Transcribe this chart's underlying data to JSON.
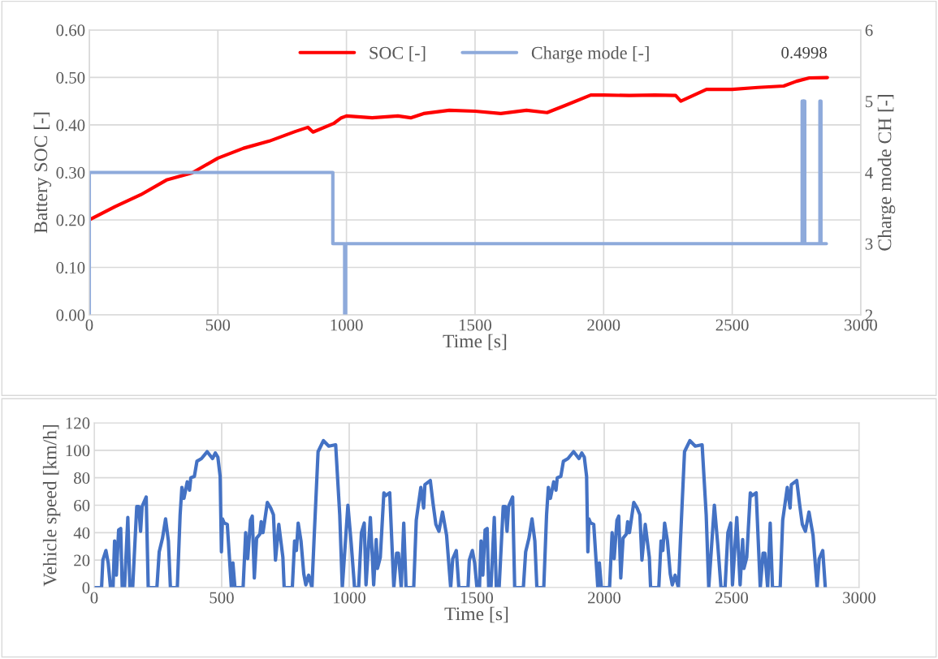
{
  "chart_data": [
    {
      "type": "line",
      "xlabel": "Time [s]",
      "ylabel": "Battery SOC [-]",
      "y2label": "Charge mode CH [-]",
      "xlim": [
        0,
        3000
      ],
      "xticks": [
        0,
        500,
        1000,
        1500,
        2000,
        2500,
        3000
      ],
      "ylim": [
        0,
        0.6
      ],
      "yticks": [
        {
          "value": 0,
          "label": "0.00"
        },
        {
          "value": 0.1,
          "label": "0.10"
        },
        {
          "value": 0.2,
          "label": "0.20"
        },
        {
          "value": 0.3,
          "label": "0.30"
        },
        {
          "value": 0.4,
          "label": "0.40"
        },
        {
          "value": 0.5,
          "label": "0.50"
        },
        {
          "value": 0.6,
          "label": "0.60"
        }
      ],
      "y2lim": [
        2,
        6
      ],
      "y2ticks": [
        2,
        3,
        4,
        5,
        6
      ],
      "grid": true,
      "legend": "top",
      "marker": "none",
      "line_style": "solid",
      "annotations": [
        {
          "text": "0.4998",
          "x": 2870,
          "y": 0.4998
        }
      ],
      "series": [
        {
          "name": "SOC [-]",
          "color": "#ff0000",
          "x": [
            0,
            100,
            200,
            300,
            400,
            500,
            600,
            700,
            800,
            850,
            870,
            950,
            980,
            1000,
            1100,
            1200,
            1250,
            1300,
            1400,
            1500,
            1600,
            1700,
            1780,
            1850,
            1950,
            2000,
            2100,
            2200,
            2280,
            2300,
            2400,
            2500,
            2600,
            2700,
            2750,
            2800,
            2870
          ],
          "values": [
            0.2,
            0.228,
            0.253,
            0.284,
            0.299,
            0.33,
            0.351,
            0.366,
            0.386,
            0.395,
            0.385,
            0.403,
            0.415,
            0.419,
            0.415,
            0.419,
            0.415,
            0.424,
            0.431,
            0.429,
            0.424,
            0.431,
            0.426,
            0.441,
            0.463,
            0.463,
            0.462,
            0.463,
            0.462,
            0.45,
            0.475,
            0.475,
            0.479,
            0.482,
            0.492,
            0.499,
            0.4998
          ]
        },
        {
          "name": "Charge mode [-]",
          "color": "#8eaadb",
          "axis": "y2",
          "x": [
            0,
            0,
            947,
            947,
            993,
            993,
            997,
            997,
            2772,
            2772,
            2776,
            2776,
            2779,
            2779,
            2782,
            2782,
            2841,
            2841,
            2845,
            2845,
            2866
          ],
          "values": [
            2,
            4,
            4,
            3,
            3,
            2,
            2,
            3,
            3,
            5,
            5,
            3,
            3,
            5,
            5,
            3,
            3,
            5,
            5,
            3,
            3
          ]
        }
      ]
    },
    {
      "type": "line",
      "xlabel": "Time [s]",
      "ylabel": "Vehicle speed [km/h]",
      "xlim": [
        0,
        3000
      ],
      "xticks": [
        0,
        500,
        1000,
        1500,
        2000,
        2500,
        3000
      ],
      "ylim": [
        0,
        120
      ],
      "yticks": [
        0,
        20,
        40,
        60,
        80,
        100,
        120
      ],
      "grid": true,
      "marker": "none",
      "line_style": "solid",
      "series": [
        {
          "color": "#4472c4",
          "x": [
            0,
            29,
            34,
            46,
            55,
            64,
            74,
            80,
            87,
            96,
            104,
            110,
            119,
            132,
            140,
            151,
            167,
            175,
            182,
            188,
            204,
            212,
            246,
            255,
            268,
            280,
            291,
            299,
            326,
            337,
            344,
            352,
            365,
            374,
            379,
            393,
            403,
            421,
            443,
            464,
            475,
            485,
            494,
            499,
            503,
            510,
            522,
            538,
            544,
            552,
            584,
            594,
            602,
            613,
            620,
            628,
            637,
            650,
            655,
            662,
            679,
            692,
            703,
            711,
            724,
            740,
            745,
            777,
            786,
            793,
            800,
            811,
            822,
            830,
            841,
            854,
            862,
            878,
            899,
            920,
            947,
            963,
            973,
            995,
            1008,
            1021,
            1037,
            1048,
            1059,
            1066,
            1083,
            1096,
            1106,
            1111,
            1122,
            1136,
            1143,
            1159,
            1175,
            1186,
            1193,
            1204,
            1214,
            1223,
            1253,
            1263,
            1281,
            1292,
            1297,
            1318,
            1329,
            1340,
            1352,
            1366,
            1382,
            1398,
            1406,
            1420,
            1430,
            1466,
            1471,
            1483,
            1492,
            1501,
            1511,
            1517,
            1524,
            1533,
            1541,
            1547,
            1556,
            1569,
            1577,
            1588,
            1604,
            1612,
            1619,
            1625,
            1641,
            1649,
            1683,
            1692,
            1705,
            1717,
            1728,
            1736,
            1763,
            1774,
            1781,
            1789,
            1802,
            1811,
            1816,
            1830,
            1840,
            1858,
            1880,
            1901,
            1912,
            1922,
            1931,
            1936,
            1940,
            1947,
            1959,
            1975,
            1981,
            1989,
            2021,
            2031,
            2039,
            2050,
            2057,
            2065,
            2074,
            2087,
            2092,
            2099,
            2116,
            2129,
            2140,
            2148,
            2161,
            2177,
            2182,
            2214,
            2223,
            2230,
            2237,
            2248,
            2259,
            2267,
            2278,
            2291,
            2299,
            2315,
            2336,
            2357,
            2384,
            2400,
            2410,
            2432,
            2445,
            2458,
            2474,
            2485,
            2496,
            2503,
            2520,
            2533,
            2543,
            2548,
            2559,
            2573,
            2580,
            2596,
            2612,
            2623,
            2630,
            2641,
            2651,
            2660,
            2690,
            2700,
            2718,
            2729,
            2734,
            2755,
            2766,
            2777,
            2789,
            2803,
            2819,
            2835,
            2843,
            2857,
            2867
          ],
          "values": [
            0,
            0,
            20,
            27,
            18,
            0,
            0,
            34,
            9,
            42,
            43,
            0,
            0,
            51,
            0,
            0,
            59,
            59,
            41,
            59,
            66,
            0,
            0,
            26,
            36,
            50,
            34,
            0,
            0,
            53,
            73,
            65,
            77,
            71,
            80,
            81,
            92,
            94,
            99,
            94,
            98,
            95,
            81,
            26,
            50,
            47,
            46,
            0,
            18,
            0,
            0,
            40,
            21,
            49,
            52,
            7,
            36,
            39,
            48,
            40,
            62,
            58,
            53,
            20,
            46,
            22,
            0,
            0,
            34,
            27,
            47,
            34,
            10,
            2,
            9,
            0,
            34,
            99,
            107,
            103,
            104,
            53,
            0,
            60,
            32,
            0,
            0,
            40,
            47,
            2,
            51,
            2,
            35,
            14,
            22,
            69,
            67,
            69,
            0,
            25,
            25,
            0,
            47,
            0,
            0,
            49,
            73,
            58,
            75,
            78,
            61,
            46,
            41,
            55,
            38,
            0,
            21,
            27,
            0,
            0,
            20,
            27,
            18,
            0,
            0,
            34,
            9,
            42,
            43,
            0,
            0,
            51,
            0,
            0,
            59,
            59,
            41,
            59,
            66,
            0,
            0,
            26,
            36,
            50,
            34,
            0,
            0,
            53,
            73,
            65,
            77,
            71,
            80,
            81,
            92,
            94,
            99,
            94,
            98,
            95,
            81,
            26,
            50,
            47,
            46,
            0,
            18,
            0,
            0,
            40,
            21,
            49,
            52,
            7,
            36,
            39,
            48,
            40,
            62,
            58,
            53,
            20,
            46,
            22,
            0,
            0,
            34,
            27,
            47,
            34,
            10,
            2,
            9,
            0,
            34,
            99,
            107,
            103,
            104,
            53,
            0,
            60,
            32,
            0,
            0,
            40,
            47,
            2,
            51,
            2,
            35,
            14,
            22,
            69,
            67,
            69,
            0,
            25,
            25,
            0,
            47,
            0,
            0,
            49,
            73,
            58,
            75,
            78,
            61,
            46,
            41,
            55,
            38,
            0,
            21,
            27,
            0
          ]
        }
      ]
    }
  ]
}
